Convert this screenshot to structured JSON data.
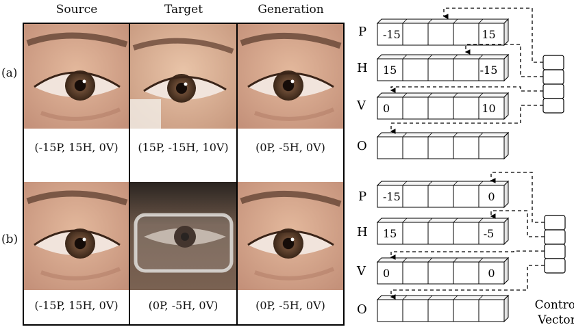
{
  "headers": {
    "source": "Source",
    "target": "Target",
    "generation": "Generation"
  },
  "row_a": {
    "label": "(a)",
    "source_caption": "(-15P, 15H, 0V)",
    "target_caption": "(15P, -15H, 10V)",
    "generation_caption": "(0P, -5H, 0V)",
    "vectors": {
      "P": {
        "letter": "P",
        "cells": [
          "-15",
          "",
          "",
          "",
          "15"
        ]
      },
      "H": {
        "letter": "H",
        "cells": [
          "15",
          "",
          "",
          "",
          "-15"
        ]
      },
      "V": {
        "letter": "V",
        "cells": [
          "0",
          "",
          "",
          "",
          "10"
        ]
      },
      "O": {
        "letter": "O",
        "cells": [
          "",
          "",
          "",
          "",
          ""
        ]
      }
    }
  },
  "row_b": {
    "label": "(b)",
    "source_caption": "(-15P, 15H, 0V)",
    "target_caption": "(0P, -5H, 0V)",
    "generation_caption": "(0P, -5H, 0V)",
    "vectors": {
      "P": {
        "letter": "P",
        "cells": [
          "-15",
          "",
          "",
          "",
          "0"
        ]
      },
      "H": {
        "letter": "H",
        "cells": [
          "15",
          "",
          "",
          "",
          "-5"
        ]
      },
      "V": {
        "letter": "V",
        "cells": [
          "0",
          "",
          "",
          "",
          "0"
        ]
      },
      "O": {
        "letter": "O",
        "cells": [
          "",
          "",
          "",
          "",
          ""
        ]
      }
    }
  },
  "control_vector_label": {
    "line1": "Control",
    "line2": "Vector"
  },
  "colors": {
    "skin": "#d4a68a",
    "iris": "#5a4030",
    "brow": "#6b4a3a",
    "frame": "#000000"
  },
  "icons": [
    "eye-photo",
    "glasses-photo",
    "dashed-arrow"
  ]
}
